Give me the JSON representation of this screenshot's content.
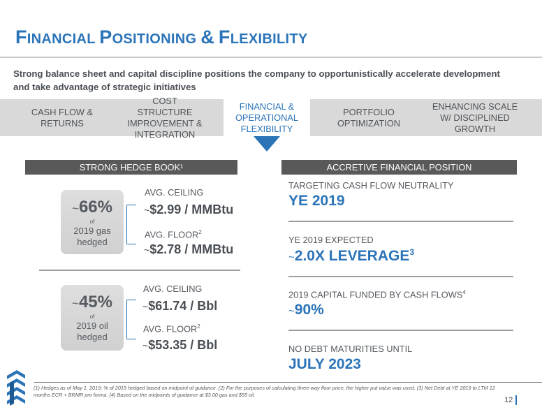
{
  "title": {
    "part1_cap": "F",
    "part1_rest": "INANCIAL",
    "part2_cap": "P",
    "part2_rest": "OSITIONING",
    "amp": "&",
    "part3_cap": "F",
    "part3_rest": "LEXIBILITY"
  },
  "subtitle": "Strong balance sheet and capital discipline positions the company to opportunistically accelerate development and take advantage of strategic initiatives",
  "tabs": [
    {
      "line1": "CASH FLOW &",
      "line2": "RETURNS",
      "line3": ""
    },
    {
      "line1": "COST STRUCTURE",
      "line2": "IMPROVEMENT &",
      "line3": "INTEGRATION"
    },
    {
      "line1": "FINANCIAL &",
      "line2": "OPERATIONAL",
      "line3": "FLEXIBILITY"
    },
    {
      "line1": "PORTFOLIO",
      "line2": "OPTIMIZATION",
      "line3": ""
    },
    {
      "line1": "ENHANCING SCALE",
      "line2": "W/ DISCIPLINED",
      "line3": "GROWTH"
    }
  ],
  "left_section": {
    "header": "STRONG HEDGE BOOK¹",
    "gas": {
      "tilde": "~",
      "pct": "66%",
      "of": "of",
      "desc1": "2019 gas",
      "desc2": "hedged",
      "ceiling_label": "AVG. CEILING",
      "ceiling_value": "$2.99 / MMBtu",
      "floor_label": "AVG. FLOOR",
      "floor_sup": "2",
      "floor_value": "$2.78 / MMBtu"
    },
    "oil": {
      "tilde": "~",
      "pct": "45%",
      "of": "of",
      "desc1": "2019 oil",
      "desc2": "hedged",
      "ceiling_label": "AVG. CEILING",
      "ceiling_value": "$61.74 / Bbl",
      "floor_label": "AVG. FLOOR",
      "floor_sup": "2",
      "floor_value": "$53.35 / Bbl"
    }
  },
  "right_section": {
    "header": "ACCRETIVE FINANCIAL POSITION",
    "metrics": [
      {
        "label": "TARGETING CASH FLOW NEUTRALITY",
        "label_sup": "",
        "value": "YE 2019",
        "value_sup": "",
        "tilde": ""
      },
      {
        "label": "YE 2019 EXPECTED",
        "label_sup": "",
        "value": "2.0X LEVERAGE",
        "value_sup": "3",
        "tilde": "~"
      },
      {
        "label": "2019 CAPITAL FUNDED BY CASH FLOWS",
        "label_sup": "4",
        "value": "90%",
        "value_sup": "",
        "tilde": "~"
      },
      {
        "label": "NO DEBT MATURITIES UNTIL",
        "label_sup": "",
        "value": "JULY 2023",
        "value_sup": "",
        "tilde": ""
      }
    ]
  },
  "footnote": "(1) Hedges as of May 1, 2019; % of 2019 hedged based on midpoint of guidance.  (2) For the purposes of calculating three-way floor price, the higher put value was used.  (3) Net Debt at YE 2019 to LTM 12 months ECR + BRMR pro forma.  (4) Based on the midpoints of guidance at $3.00 gas and $55 oil.",
  "page_number": "12",
  "colors": {
    "accent": "#2b74b8",
    "tab_bar": "#d9d9d9",
    "section_bar": "#595959",
    "text": "#555a60"
  },
  "icons": {
    "logo": "company-logo-icon",
    "pointer": "triangle-down-icon"
  }
}
